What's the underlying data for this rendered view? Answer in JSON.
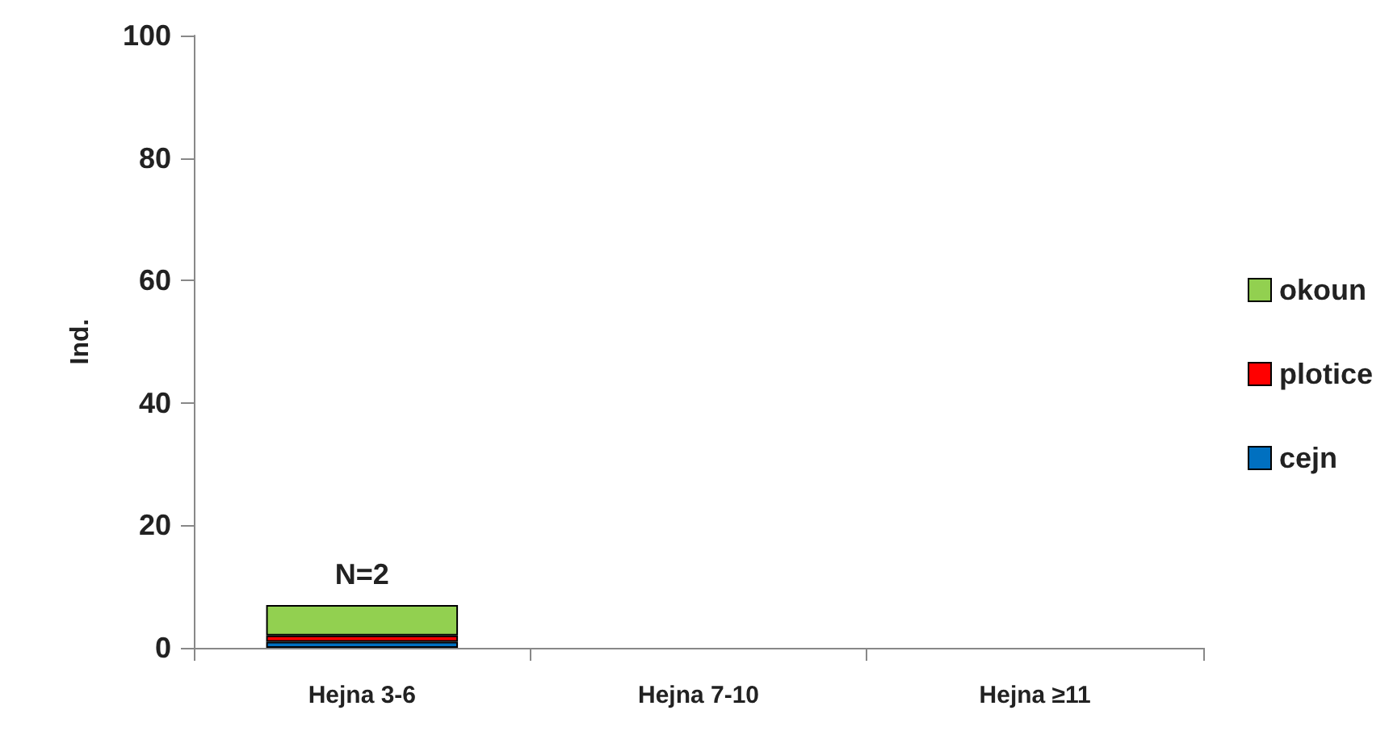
{
  "chart_data": {
    "type": "bar",
    "stacked": true,
    "ylabel": "Ind.",
    "categories": [
      "Hejna 3-6",
      "Hejna 7-10",
      "Hejna ≥11"
    ],
    "series": [
      {
        "name": "cejn",
        "color": "#0070c0",
        "values": [
          1,
          null,
          null
        ]
      },
      {
        "name": "plotice",
        "color": "#ff0000",
        "values": [
          1,
          null,
          null
        ]
      },
      {
        "name": "okoun",
        "color": "#92d050",
        "values": [
          5,
          null,
          null
        ]
      }
    ],
    "ylim": [
      0,
      100
    ],
    "yticks": [
      0,
      20,
      40,
      60,
      80,
      100
    ],
    "grid": false,
    "legend": "right",
    "annotations": [
      {
        "text": "N=2",
        "x": "Hejna 3-6",
        "y": 7
      }
    ]
  }
}
